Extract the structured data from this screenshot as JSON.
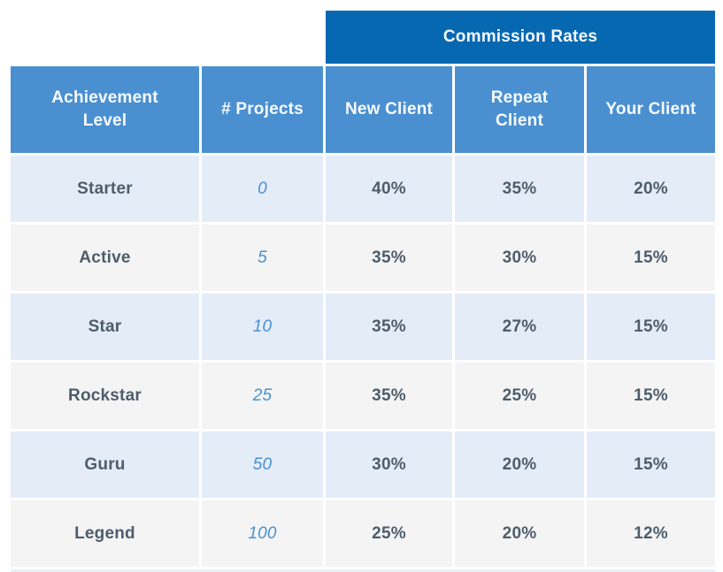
{
  "chart_data": {
    "type": "table",
    "title": "Commission Rates",
    "columns": [
      "Achievement Level",
      "# Projects",
      "New Client",
      "Repeat Client",
      "Your Client"
    ],
    "rows": [
      {
        "level": "Starter",
        "projects": "0",
        "new_client": "40%",
        "repeat_client": "35%",
        "your_client": "20%"
      },
      {
        "level": "Active",
        "projects": "5",
        "new_client": "35%",
        "repeat_client": "30%",
        "your_client": "15%"
      },
      {
        "level": "Star",
        "projects": "10",
        "new_client": "35%",
        "repeat_client": "27%",
        "your_client": "15%"
      },
      {
        "level": "Rockstar",
        "projects": "25",
        "new_client": "35%",
        "repeat_client": "25%",
        "your_client": "15%"
      },
      {
        "level": "Guru",
        "projects": "50",
        "new_client": "30%",
        "repeat_client": "20%",
        "your_client": "15%"
      },
      {
        "level": "Legend",
        "projects": "100",
        "new_client": "25%",
        "repeat_client": "20%",
        "your_client": "12%"
      }
    ],
    "layout": {
      "title_position": "spans last three columns",
      "row_striping": "alternating light-blue and light-gray",
      "grid": "white gaps between cells"
    }
  },
  "colors": {
    "title_bg": "#0768b2",
    "header_bg": "#4a90d1",
    "row_blue": "#e4ecf8",
    "row_gray": "#f4f4f4",
    "text_dark": "#4e5d6c",
    "text_accent": "#4a90d2",
    "header_text": "#f7fafd"
  }
}
